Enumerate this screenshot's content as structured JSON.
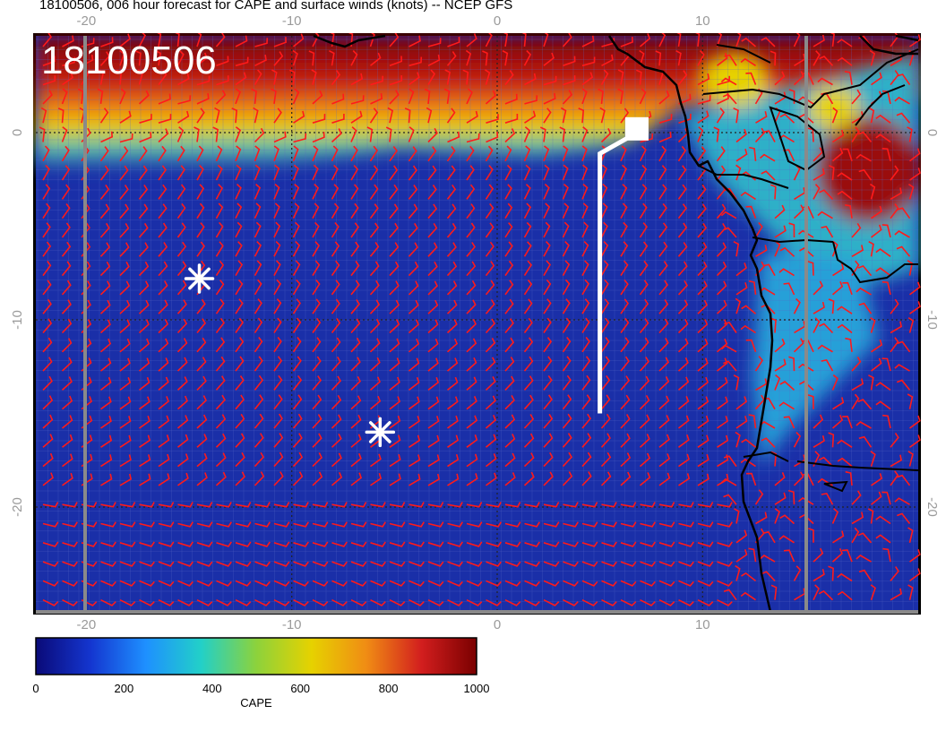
{
  "title": "18100506, 006 hour forecast for CAPE and surface winds (knots) -- NCEP GFS",
  "timestamp_label": "18100506",
  "map": {
    "lon_range": [
      -22.5,
      21.5
    ],
    "lat_range": [
      -25.5,
      5
    ],
    "top_lon_ticks": [
      "-20",
      "-10",
      "0",
      "10"
    ],
    "bottom_lon_ticks": [
      "-20",
      "-10",
      "0",
      "10"
    ],
    "left_lat_ticks": [
      "0",
      "-10",
      "-20"
    ],
    "right_lat_ticks": [
      "0",
      "-10",
      "-20"
    ],
    "colors": {
      "ocean_low": "#1a2fa8",
      "wind_barbs": "#ff1a1a",
      "coastline": "#000000",
      "markers": "#ffffff",
      "grid": "#808080"
    },
    "markers": [
      {
        "type": "asterisk",
        "lon": -14.5,
        "lat": -7.8
      },
      {
        "type": "asterisk",
        "lon": -5.7,
        "lat": -16.0
      }
    ],
    "track": {
      "from": [
        5.0,
        -15.0
      ],
      "to": [
        6.8,
        0.2
      ]
    }
  },
  "colorbar": {
    "label": "CAPE",
    "ticks": [
      "0",
      "200",
      "400",
      "600",
      "800",
      "1000"
    ],
    "stops": [
      "#0a0a78",
      "#1436d0",
      "#1e90ff",
      "#22d0c8",
      "#8cd23c",
      "#e6d200",
      "#f08c14",
      "#d21e1e",
      "#7a0000"
    ]
  }
}
